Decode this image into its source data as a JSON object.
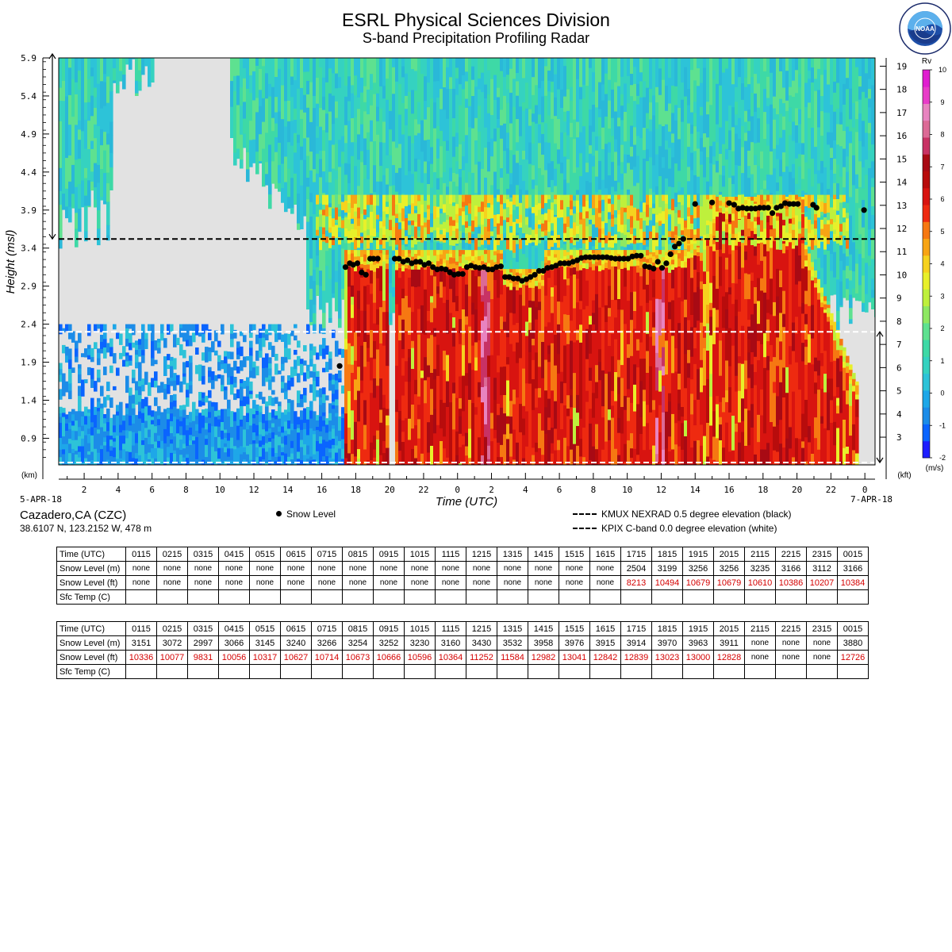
{
  "header": {
    "title": "ESRL Physical Sciences Division",
    "subtitle": "S-band Precipitation Profiling Radar"
  },
  "station": {
    "name": "Cazadero,CA (CZC)",
    "coords": "38.6107 N, 123.2152 W, 478 m"
  },
  "legend": {
    "snow_level": "Snow Level",
    "kmux": "KMUX NEXRAD 0.5 degree elevation (black)",
    "kpix": "KPIX C-band 0.0 degree elevation (white)"
  },
  "colors": {
    "background_gray": "#e2e2e2",
    "snow_dot": "#000000",
    "kmux_line": "#000000",
    "kpix_line": "#ffffff",
    "table_red": "#d40000"
  },
  "chart_data": {
    "type": "heatmap",
    "ylabel": "Height (msl)",
    "xlabel": "Time (UTC)",
    "y_unit_left": "(km)",
    "y_unit_right": "(kft)",
    "date_start": "5-APR-18",
    "date_end": "7-APR-18",
    "x_ticks": [
      "2",
      "4",
      "6",
      "8",
      "10",
      "12",
      "14",
      "16",
      "18",
      "20",
      "22",
      "0",
      "2",
      "4",
      "6",
      "8",
      "10",
      "12",
      "14",
      "16",
      "18",
      "20",
      "22",
      "0"
    ],
    "x_range_hours": [
      0.5,
      48.6
    ],
    "y_ticks_km": [
      "0.9",
      "1.4",
      "1.9",
      "2.4",
      "2.9",
      "3.4",
      "3.9",
      "4.4",
      "4.9",
      "5.4",
      "5.9"
    ],
    "y_ticks_kft": [
      "3",
      "4",
      "5",
      "6",
      "7",
      "8",
      "9",
      "10",
      "11",
      "12",
      "13",
      "14",
      "15",
      "16",
      "17",
      "18",
      "19"
    ],
    "ylim_km": [
      0.55,
      5.9
    ],
    "kmux_height_km": 3.52,
    "kpix_height_km": 2.3,
    "colorbar": {
      "label": "Rv",
      "unit": "(m/s)",
      "ticks": [
        "-2",
        "-1",
        "0",
        "1",
        "2",
        "3",
        "4",
        "5",
        "6",
        "7",
        "8",
        "9",
        "10"
      ],
      "colors": [
        "#1e1eff",
        "#0a64ff",
        "#1c8ce8",
        "#1ea7e8",
        "#2dc3d8",
        "#35d2c0",
        "#3ed9a6",
        "#5ee190",
        "#8ee862",
        "#bef03c",
        "#e8f02a",
        "#f6d21e",
        "#f8a414",
        "#f67812",
        "#ee2a10",
        "#d81410",
        "#b80c0c",
        "#a80a14",
        "#c83264",
        "#dc6a96",
        "#e884c0",
        "#e83cc8",
        "#e01ed0"
      ]
    },
    "snow_level": {
      "name": "Snow Level",
      "x_hours": [
        17.05,
        17.4,
        17.65,
        17.85,
        18.1,
        18.35,
        18.6,
        18.85,
        19.05,
        19.3,
        20.3,
        20.55,
        20.8,
        21.05,
        21.3,
        21.55,
        21.8,
        22.05,
        22.3,
        22.55,
        22.8,
        23.05,
        23.3,
        23.55,
        23.8,
        24.05,
        24.3,
        24.55,
        24.8,
        25.05,
        25.3,
        25.55,
        25.8,
        26.05,
        26.3,
        26.55,
        26.8,
        27.05,
        27.3,
        27.55,
        27.8,
        28.05,
        28.3,
        28.55,
        28.8,
        29.05,
        29.3,
        29.55,
        29.8,
        30.05,
        30.3,
        30.55,
        30.8,
        31.05,
        31.3,
        31.55,
        31.8,
        32.05,
        32.3,
        32.55,
        32.8,
        33.05,
        33.3,
        33.55,
        33.8,
        34.05,
        34.3,
        34.55,
        34.8,
        35.05,
        35.3,
        35.55,
        35.8,
        36.05,
        36.3,
        36.55,
        36.8,
        37.05,
        37.3,
        38.0,
        39.0,
        40.0,
        40.3,
        40.55,
        40.8,
        41.05,
        41.3,
        41.55,
        41.8,
        42.05,
        42.3,
        42.55,
        42.8,
        43.05,
        43.3,
        43.55,
        43.8,
        44.05,
        44.95,
        45.15,
        47.95
      ],
      "y_km": [
        1.85,
        3.15,
        3.2,
        3.18,
        3.2,
        3.08,
        3.05,
        3.26,
        3.26,
        3.26,
        3.26,
        3.26,
        3.22,
        3.24,
        3.2,
        3.22,
        3.22,
        3.18,
        3.2,
        3.15,
        3.12,
        3.13,
        3.12,
        3.08,
        3.05,
        3.06,
        3.06,
        3.15,
        3.17,
        3.15,
        3.14,
        3.15,
        3.12,
        3.12,
        3.15,
        3.16,
        3.02,
        3.02,
        3.0,
        3.0,
        2.97,
        2.99,
        3.02,
        3.05,
        3.1,
        3.1,
        3.14,
        3.15,
        3.17,
        3.2,
        3.2,
        3.2,
        3.22,
        3.24,
        3.27,
        3.28,
        3.28,
        3.28,
        3.28,
        3.28,
        3.28,
        3.27,
        3.26,
        3.26,
        3.26,
        3.26,
        3.29,
        3.3,
        3.3,
        3.16,
        3.15,
        3.13,
        3.22,
        3.14,
        3.2,
        3.32,
        3.42,
        3.46,
        3.52,
        3.98,
        4.0,
        3.99,
        3.97,
        3.92,
        3.93,
        3.92,
        3.92,
        3.92,
        3.93,
        3.93,
        3.93,
        3.86,
        3.93,
        3.95,
        3.99,
        3.98,
        3.98,
        3.98,
        3.97,
        3.93,
        3.9
      ]
    }
  },
  "tables": [
    {
      "rows": [
        {
          "label": "Time (UTC)",
          "values": [
            "0115",
            "0215",
            "0315",
            "0415",
            "0515",
            "0615",
            "0715",
            "0815",
            "0915",
            "1015",
            "1115",
            "1215",
            "1315",
            "1415",
            "1515",
            "1615",
            "1715",
            "1815",
            "1915",
            "2015",
            "2115",
            "2215",
            "2315",
            "0015"
          ]
        },
        {
          "label": "Snow Level (m)",
          "values": [
            "none",
            "none",
            "none",
            "none",
            "none",
            "none",
            "none",
            "none",
            "none",
            "none",
            "none",
            "none",
            "none",
            "none",
            "none",
            "none",
            "2504",
            "3199",
            "3256",
            "3256",
            "3235",
            "3166",
            "3112",
            "3166"
          ]
        },
        {
          "label": "Snow Level (ft)",
          "values": [
            "none",
            "none",
            "none",
            "none",
            "none",
            "none",
            "none",
            "none",
            "none",
            "none",
            "none",
            "none",
            "none",
            "none",
            "none",
            "none",
            "8213",
            "10494",
            "10679",
            "10679",
            "10610",
            "10386",
            "10207",
            "10384"
          ]
        },
        {
          "label": "Sfc Temp (C)",
          "values": [
            "",
            "",
            "",
            "",
            "",
            "",
            "",
            "",
            "",
            "",
            "",
            "",
            "",
            "",
            "",
            "",
            "",
            "",
            "",
            "",
            "",
            "",
            "",
            ""
          ]
        }
      ]
    },
    {
      "rows": [
        {
          "label": "Time (UTC)",
          "values": [
            "0115",
            "0215",
            "0315",
            "0415",
            "0515",
            "0615",
            "0715",
            "0815",
            "0915",
            "1015",
            "1115",
            "1215",
            "1315",
            "1415",
            "1515",
            "1615",
            "1715",
            "1815",
            "1915",
            "2015",
            "2115",
            "2215",
            "2315",
            "0015"
          ]
        },
        {
          "label": "Snow Level (m)",
          "values": [
            "3151",
            "3072",
            "2997",
            "3066",
            "3145",
            "3240",
            "3266",
            "3254",
            "3252",
            "3230",
            "3160",
            "3430",
            "3532",
            "3958",
            "3976",
            "3915",
            "3914",
            "3970",
            "3963",
            "3911",
            "none",
            "none",
            "none",
            "3880"
          ]
        },
        {
          "label": "Snow Level (ft)",
          "values": [
            "10336",
            "10077",
            "9831",
            "10056",
            "10317",
            "10627",
            "10714",
            "10673",
            "10666",
            "10596",
            "10364",
            "11252",
            "11584",
            "12982",
            "13041",
            "12842",
            "12839",
            "13023",
            "13000",
            "12828",
            "none",
            "none",
            "none",
            "12726"
          ]
        },
        {
          "label": "Sfc Temp (C)",
          "values": [
            "",
            "",
            "",
            "",
            "",
            "",
            "",
            "",
            "",
            "",
            "",
            "",
            "",
            "",
            "",
            "",
            "",
            "",
            "",
            "",
            "",
            "",
            "",
            ""
          ]
        }
      ]
    }
  ]
}
